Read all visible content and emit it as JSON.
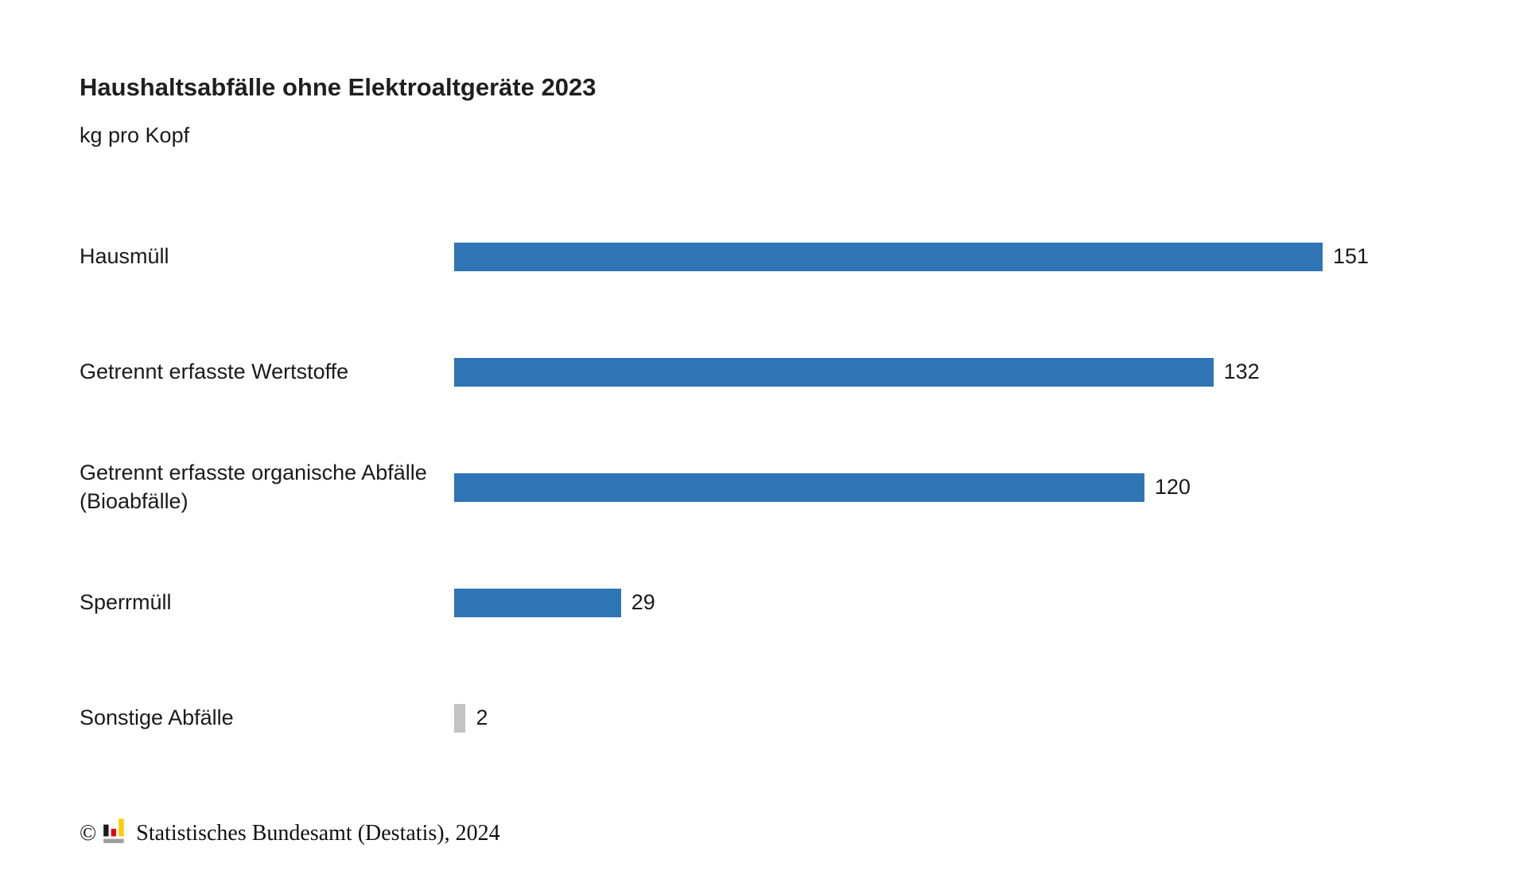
{
  "header": {
    "title": "Haushaltsabfälle ohne Elektroaltgeräte 2023",
    "subtitle": "kg pro Kopf"
  },
  "chart_data": {
    "type": "bar",
    "orientation": "horizontal",
    "title": "Haushaltsabfälle ohne Elektroaltgeräte 2023",
    "unit_label": "kg pro Kopf",
    "categories": [
      "Hausmüll",
      "Getrennt erfasste Wertstoffe",
      "Getrennt erfasste organische Abfälle (Bioabfälle)",
      "Sperrmüll",
      "Sonstige Abfälle"
    ],
    "values": [
      151,
      132,
      120,
      29,
      2
    ],
    "bar_colors": [
      "#2F74B5",
      "#2F74B5",
      "#2F74B5",
      "#2F74B5",
      "#C3C3C3"
    ],
    "value_labels": [
      "151",
      "132",
      "120",
      "29",
      "2"
    ],
    "xlim": [
      0,
      151
    ],
    "grid": false,
    "axes_shown": false,
    "legend": null,
    "xlabel": "",
    "ylabel": ""
  },
  "footer": {
    "copyright_symbol": "©",
    "logo_icon": "destatis-bar-chart-logo",
    "source": "Statistisches Bundesamt (Destatis), 2024"
  },
  "colors": {
    "bar_primary": "#2F74B5",
    "bar_muted": "#C3C3C3",
    "text": "#1A1A1A",
    "background": "#FFFFFF",
    "logo_black": "#1A1A1A",
    "logo_red": "#E30613",
    "logo_yellow": "#FFCC00",
    "logo_gray": "#9D9D9C"
  }
}
